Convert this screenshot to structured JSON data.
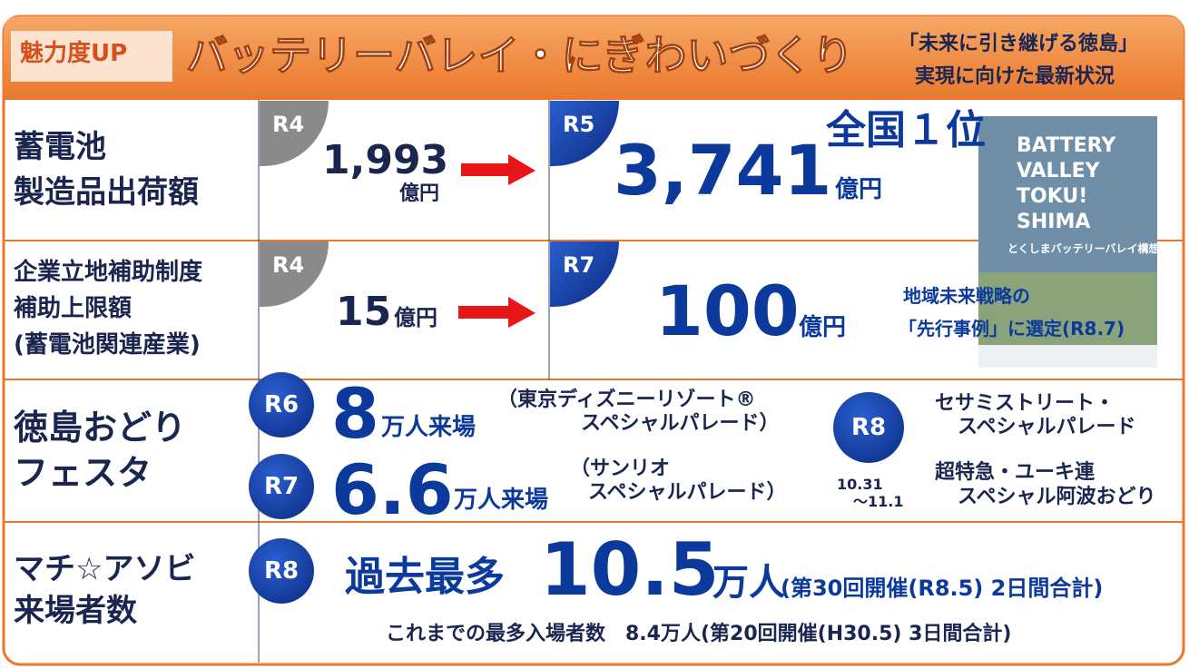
{
  "header": {
    "badge": "魅力度UP",
    "title": "バッテリーバレイ・にぎわいづくり",
    "subtitle": [
      "「未来に引き継げる徳島」",
      "実現に向けた最新状況"
    ]
  },
  "rows": [
    {
      "label": [
        "蓄電池",
        "製造品出荷額"
      ],
      "before": {
        "period": "R4",
        "value": "1,993",
        "unit": "億円"
      },
      "after": {
        "period": "R5",
        "value": "3,741",
        "unit": "億円",
        "note": "全国１位"
      }
    },
    {
      "label": [
        "企業立地補助制度",
        "補助上限額",
        "(蓄電池関連産業)"
      ],
      "before": {
        "period": "R4",
        "value": "15",
        "unit": "億円"
      },
      "after": {
        "period": "R7",
        "value": "100",
        "unit": "億円",
        "note": [
          "地域未来戦略の",
          "「先行事例」に選定(R8.7)"
        ]
      }
    },
    {
      "label": [
        "徳島おどり",
        "フェスタ"
      ],
      "entries": [
        {
          "period": "R6",
          "value": "8",
          "unit": "万人来場",
          "note": [
            "（東京ディズニーリゾート®",
            "スペシャルパレード）"
          ]
        },
        {
          "period": "R7",
          "value": "6.6",
          "unit": "万人来場",
          "note": [
            "（サンリオ",
            "スペシャルパレード）"
          ]
        }
      ],
      "upcoming": {
        "period": "R8",
        "dates": [
          "10.31",
          "～11.1"
        ],
        "events": [
          "セサミストリート・",
          "スペシャルパレード",
          "超特急・ユーキ連",
          "スペシャル阿波おどり"
        ]
      }
    },
    {
      "label": [
        "マチ☆アソビ",
        "来場者数"
      ],
      "period": "R8",
      "prefix": "過去最多",
      "value": "10.5",
      "unit": "万人",
      "note": "(第30回開催(R8.5) 2日間合計)",
      "previous": "これまでの最多入場者数　8.4万人(第20回開催(H30.5) 3日間合計)"
    }
  ],
  "poster": {
    "title": [
      "BATTERY",
      "VALLEY",
      "TOKU!",
      "SHIMA"
    ],
    "caption": "とくしまバッテリーバレイ構想"
  }
}
